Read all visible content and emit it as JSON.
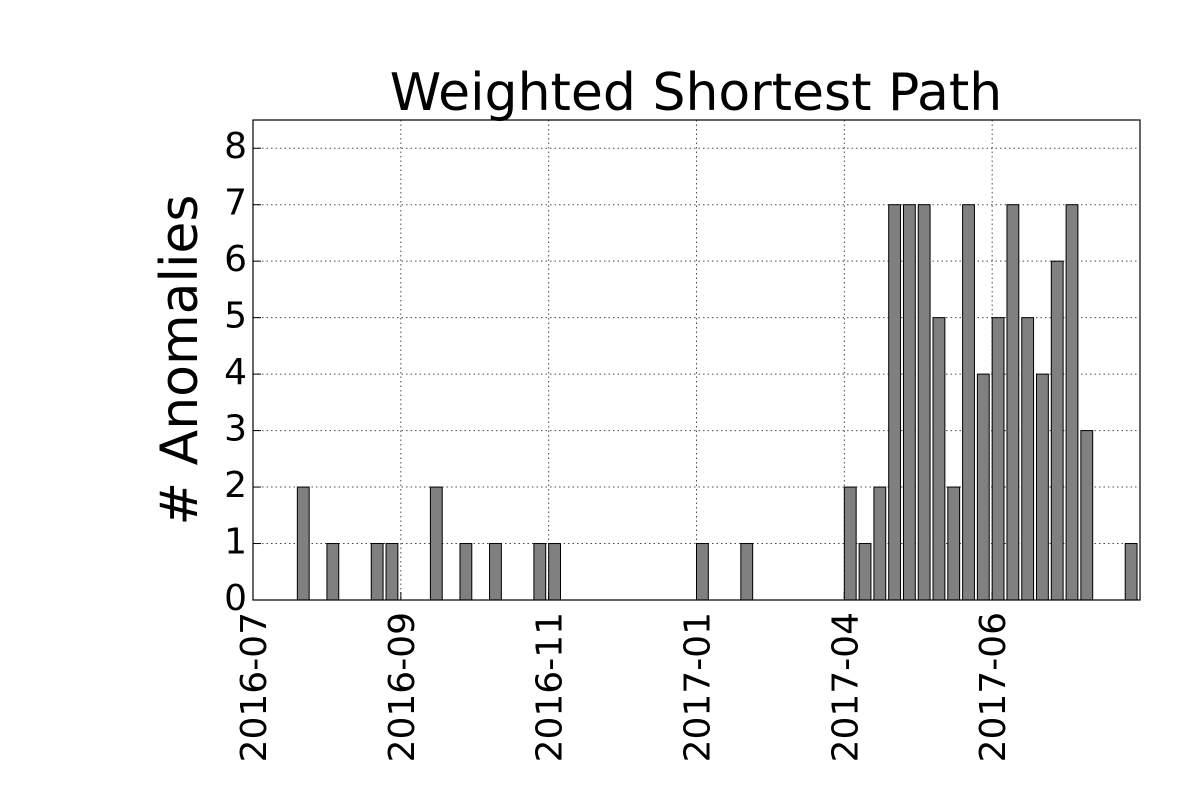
{
  "chart_data": {
    "type": "bar",
    "title": "Weighted Shortest Path",
    "y_label": "# Anomalies",
    "categories": [
      "2016-07",
      null,
      null,
      null,
      null,
      null,
      null,
      null,
      null,
      null,
      "2016-09",
      null,
      null,
      null,
      null,
      null,
      null,
      null,
      null,
      null,
      "2016-11",
      null,
      null,
      null,
      null,
      null,
      null,
      null,
      null,
      null,
      "2017-01",
      null,
      null,
      null,
      null,
      null,
      null,
      null,
      null,
      null,
      "2017-04",
      null,
      null,
      null,
      null,
      null,
      null,
      null,
      null,
      null,
      "2017-06",
      null,
      null,
      null,
      null,
      null,
      null,
      null,
      null,
      null
    ],
    "values": [
      0,
      0,
      0,
      2,
      0,
      1,
      0,
      0,
      1,
      1,
      0,
      0,
      2,
      0,
      1,
      0,
      1,
      0,
      0,
      1,
      1,
      0,
      0,
      0,
      0,
      0,
      0,
      0,
      0,
      0,
      1,
      0,
      0,
      1,
      0,
      0,
      0,
      0,
      0,
      0,
      2,
      1,
      2,
      7,
      7,
      7,
      5,
      2,
      7,
      4,
      5,
      7,
      5,
      4,
      6,
      7,
      3,
      0,
      0,
      1
    ],
    "color": "#808080",
    "ylim": [
      0,
      8.5
    ],
    "yticks": [
      0,
      1,
      2,
      3,
      4,
      5,
      6,
      7,
      8
    ],
    "grid": true
  }
}
